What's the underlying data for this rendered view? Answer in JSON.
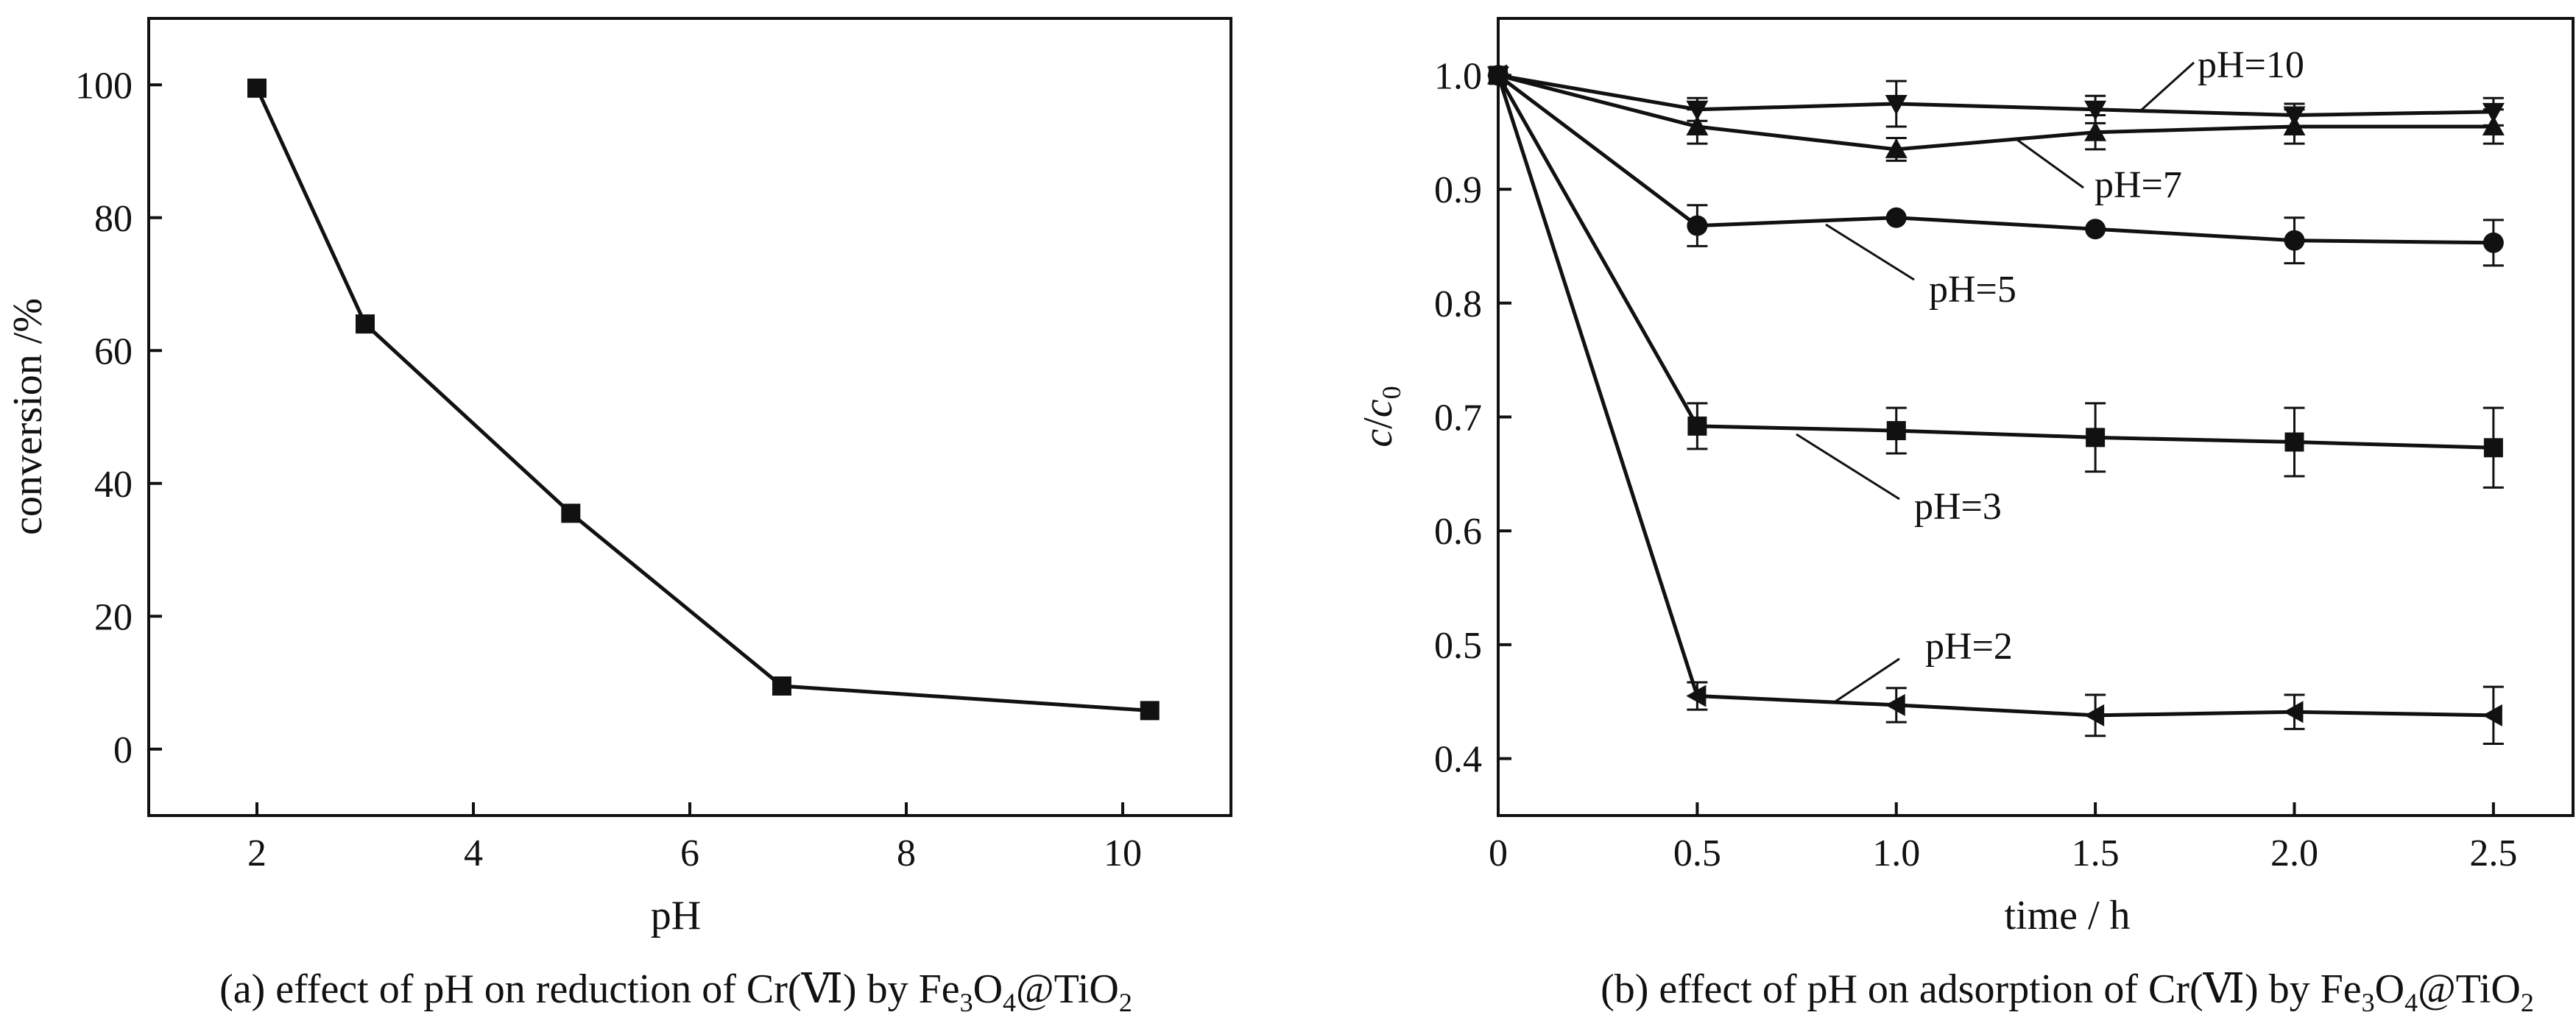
{
  "chart_data": [
    {
      "type": "line",
      "panel": "a",
      "caption": {
        "prefix": "(a) effect of pH on reduction of Cr(",
        "roman": "Ⅵ",
        "mid": ") by Fe",
        "sub1": "3",
        "o": "O",
        "sub2": "4",
        "tail": "@TiO",
        "sub3": "2"
      },
      "xlabel": "pH",
      "ylabel": "conversion /%",
      "xlim": [
        1,
        11
      ],
      "ylim": [
        -10,
        110
      ],
      "xticks": [
        2,
        4,
        6,
        8,
        10
      ],
      "yticks": [
        0,
        20,
        40,
        60,
        80,
        100
      ],
      "series": [
        {
          "name": "conversion",
          "marker": "square",
          "x": [
            2,
            3,
            4.9,
            6.85,
            10.25
          ],
          "y": [
            99.5,
            64,
            35.5,
            9.5,
            5.8
          ]
        }
      ]
    },
    {
      "type": "line",
      "panel": "b",
      "caption": {
        "prefix": "(b) effect of pH on adsorption of Cr(",
        "roman": "Ⅵ",
        "mid": ") by Fe",
        "sub1": "3",
        "o": "O",
        "sub2": "4",
        "tail": "@TiO",
        "sub3": "2"
      },
      "xlabel": "time / h",
      "ylabel_c": "c",
      "ylabel_sep": "/",
      "ylabel_c0": "c",
      "ylabel_sub": "0",
      "xlim": [
        0,
        2.7
      ],
      "ylim": [
        0.35,
        1.05
      ],
      "xticks": [
        "0",
        "0.5",
        "1.0",
        "1.5",
        "2.0",
        "2.5"
      ],
      "yticks": [
        "0.4",
        "0.5",
        "0.6",
        "0.7",
        "0.8",
        "0.9",
        "1.0"
      ],
      "x": [
        0,
        0.5,
        1.0,
        1.5,
        2.0,
        2.5
      ],
      "series": [
        {
          "name": "pH=10",
          "marker": "triangle-down",
          "values": [
            1.0,
            0.97,
            0.975,
            0.97,
            0.965,
            0.968
          ],
          "errors": [
            0,
            0.01,
            0.02,
            0.012,
            0.01,
            0.012
          ]
        },
        {
          "name": "pH=7",
          "marker": "triangle-up",
          "values": [
            1.0,
            0.955,
            0.935,
            0.95,
            0.955,
            0.955
          ],
          "errors": [
            0,
            0.015,
            0.01,
            0.015,
            0.015,
            0.015
          ]
        },
        {
          "name": "pH=5",
          "marker": "circle",
          "values": [
            1.0,
            0.868,
            0.875,
            0.865,
            0.855,
            0.853
          ],
          "errors": [
            0,
            0.018,
            0,
            0,
            0.02,
            0.02
          ]
        },
        {
          "name": "pH=3",
          "marker": "square",
          "values": [
            1.0,
            0.692,
            0.688,
            0.682,
            0.678,
            0.673
          ],
          "errors": [
            0,
            0.02,
            0.02,
            0.03,
            0.03,
            0.035
          ]
        },
        {
          "name": "pH=2",
          "marker": "triangle-left",
          "values": [
            1.0,
            0.455,
            0.447,
            0.438,
            0.441,
            0.438
          ],
          "errors": [
            0,
            0.012,
            0.015,
            0.018,
            0.015,
            0.025
          ]
        }
      ],
      "annotations": [
        {
          "text": "pH=10",
          "series": "pH=10"
        },
        {
          "text": "pH=7",
          "series": "pH=7"
        },
        {
          "text": "pH=5",
          "series": "pH=5"
        },
        {
          "text": "pH=3",
          "series": "pH=3"
        },
        {
          "text": "pH=2",
          "series": "pH=2"
        }
      ]
    }
  ]
}
